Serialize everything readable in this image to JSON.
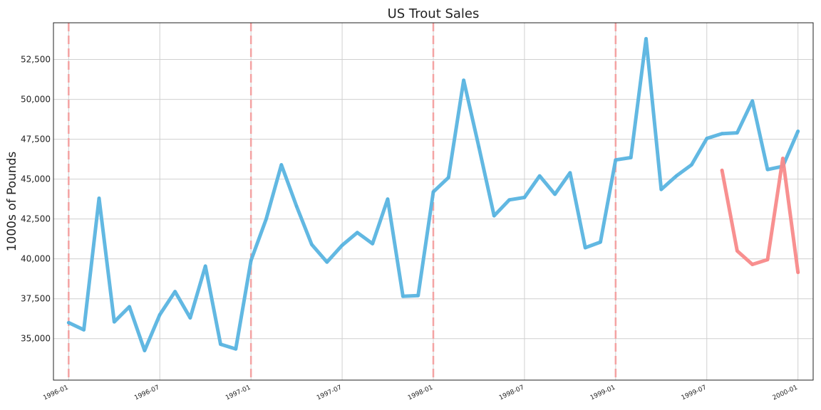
{
  "chart_data": {
    "type": "line",
    "title": "US Trout Sales",
    "xlabel": "",
    "ylabel": "1000s of Pounds",
    "x_axis": "date",
    "xlim": [
      "1995-12",
      "2000-02"
    ],
    "ylim": [
      32400,
      54800
    ],
    "yticks": [
      35000,
      37500,
      40000,
      42500,
      45000,
      47500,
      50000,
      52500
    ],
    "ytick_labels": [
      "35,000",
      "37,500",
      "40,000",
      "42,500",
      "45,000",
      "47,500",
      "50,000",
      "52,500"
    ],
    "xticks": [
      "1996-01",
      "1996-07",
      "1997-01",
      "1997-07",
      "1998-01",
      "1998-07",
      "1999-01",
      "1999-07",
      "2000-01"
    ],
    "xtick_labels": [
      "1996-01",
      "1996-07",
      "1997-01",
      "1997-07",
      "1998-01",
      "1998-07",
      "1999-01",
      "1999-07",
      "2000-01"
    ],
    "grid": true,
    "vlines": [
      "1996-01",
      "1997-01",
      "1998-01",
      "1999-01"
    ],
    "colors": {
      "series1": "#5ab4e0",
      "series2": "#f88a8a",
      "vline": "#f4a3a3",
      "axis": "#222222"
    },
    "series": [
      {
        "x": [
          "1996-01",
          "1996-02",
          "1996-03",
          "1996-04",
          "1996-05",
          "1996-06",
          "1996-07",
          "1996-08",
          "1996-09",
          "1996-10",
          "1996-11",
          "1996-12",
          "1997-01",
          "1997-02",
          "1997-03",
          "1997-04",
          "1997-05",
          "1997-06",
          "1997-07",
          "1997-08",
          "1997-09",
          "1997-10",
          "1997-11",
          "1997-12",
          "1998-01",
          "1998-02",
          "1998-03",
          "1998-04",
          "1998-05",
          "1998-06",
          "1998-07",
          "1998-08",
          "1998-09",
          "1998-10",
          "1998-11",
          "1998-12",
          "1999-01",
          "1999-02",
          "1999-03",
          "1999-04",
          "1999-05",
          "1999-06",
          "1999-07",
          "1999-08",
          "1999-09",
          "1999-10",
          "1999-11",
          "1999-12",
          "2000-01"
        ],
        "values": [
          36000,
          35550,
          43800,
          36050,
          37000,
          34250,
          36500,
          37950,
          36300,
          39550,
          34650,
          34350,
          39900,
          42500,
          45900,
          43300,
          40900,
          39800,
          40850,
          41650,
          40950,
          43750,
          37650,
          37700,
          44200,
          45100,
          51200,
          47000,
          42700,
          43700,
          43850,
          45200,
          44050,
          45400,
          40700,
          41050,
          46200,
          46350,
          53800,
          44350,
          45200,
          45900,
          47550,
          47850,
          47900,
          49900,
          45600,
          45800,
          48000
        ]
      },
      {
        "x": [
          "1999-08",
          "1999-09",
          "1999-10",
          "1999-11",
          "1999-12",
          "2000-01"
        ],
        "values": [
          45550,
          40500,
          39650,
          39950,
          46300,
          39150
        ]
      }
    ]
  }
}
